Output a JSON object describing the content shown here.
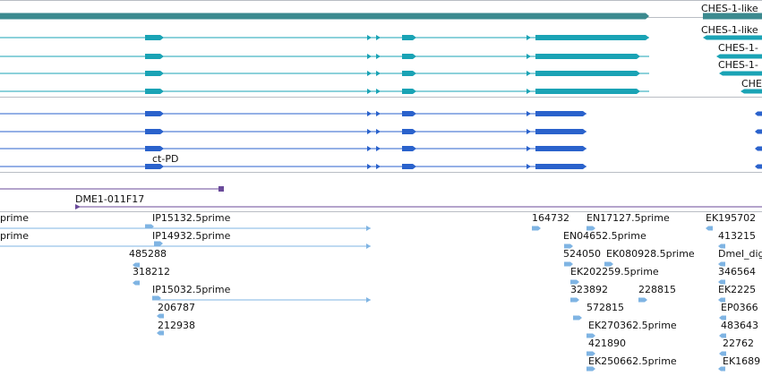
{
  "colors": {
    "gene_summary": "#3b8a8f",
    "transcript_teal": "#1aa3b5",
    "transcript_blue": "#2a62cc",
    "transposon": "#6a4a9a",
    "est": "#7fb4e3",
    "track_border": "#b9bdc4",
    "label_bg": "#ffffff"
  },
  "icons": {
    "strand_forward": "arrow-right-icon",
    "strand_reverse": "arrow-left-icon"
  },
  "gene_track": {
    "labels": [
      "CHES-1-like",
      "CHES-1-like",
      "CHES-1-",
      "CHES-1-",
      "CHE"
    ]
  },
  "transcript_track": {
    "labels": [
      "ct-PD"
    ]
  },
  "transposon_track": {
    "labels": [
      "DME1-011F17"
    ]
  },
  "est_track": {
    "labels": [
      "prime",
      "IP15132.5prime",
      "164732",
      "EN17127.5prime",
      "EK195702",
      "prime",
      "IP14932.5prime",
      "EN04652.5prime",
      "413215",
      "485288",
      "524050",
      "EK080928.5prime",
      "Dmel_dig",
      "318212",
      "EK202259.5prime",
      "346564",
      "IP15032.5prime",
      "323892",
      "228815",
      "EK2225",
      "206787",
      "572815",
      "EP0366",
      "212938",
      "EK270362.5prime",
      "483643",
      "421890",
      "22762",
      "EK250662.5prime",
      "EK1689"
    ]
  }
}
